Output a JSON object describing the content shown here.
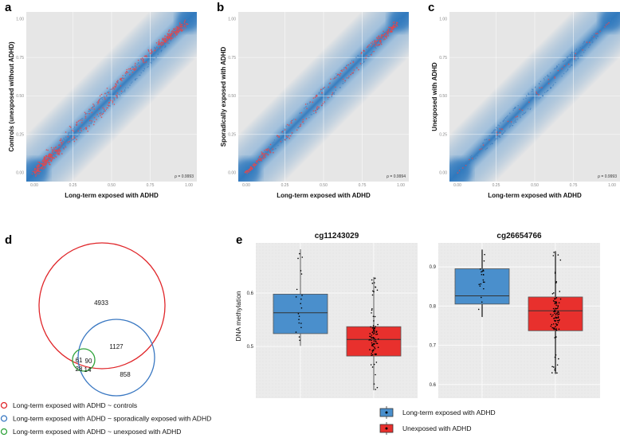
{
  "chart_data": [
    {
      "type": "scatter",
      "panel": "a",
      "xlabel": "Long-term exposed with ADHD",
      "ylabel": "Controls (unexposed without ADHD)",
      "xlim": [
        0,
        1
      ],
      "ylim": [
        0,
        1
      ],
      "ticks": [
        "0.00",
        "0.25",
        "0.50",
        "0.75",
        "1.00"
      ],
      "annotation": "ρ = 0.9993",
      "highlight_color": "#e8474a",
      "density_color": "#2f78bd"
    },
    {
      "type": "scatter",
      "panel": "b",
      "xlabel": "Long-term exposed with ADHD",
      "ylabel": "Sporadically exposed with ADHD",
      "xlim": [
        0,
        1
      ],
      "ylim": [
        0,
        1
      ],
      "ticks": [
        "0.00",
        "0.25",
        "0.50",
        "0.75",
        "1.00"
      ],
      "annotation": "ρ = 0.9994",
      "highlight_color": "#e8474a",
      "density_color": "#2f78bd"
    },
    {
      "type": "scatter",
      "panel": "c",
      "xlabel": "Long-term exposed with ADHD",
      "ylabel": "Unexposed with ADHD",
      "xlim": [
        0,
        1
      ],
      "ylim": [
        0,
        1
      ],
      "ticks": [
        "0.00",
        "0.25",
        "0.50",
        "0.75",
        "1.00"
      ],
      "annotation": "ρ = 0.9993",
      "highlight_color": "#e8474a",
      "density_color": "#2f78bd"
    },
    {
      "type": "venn",
      "panel": "d",
      "sets": [
        {
          "name": "Long-term exposed with ADHD ~ controls",
          "color": "#e0262a"
        },
        {
          "name": "Long-term exposed with ADHD ~ sporadically exposed with ADHD",
          "color": "#3a78c2"
        },
        {
          "name": "Long-term exposed with ADHD ~  unexposed with ADHD",
          "color": "#2ea33a"
        }
      ],
      "regions": {
        "red_only": "4933",
        "red_blue": "1127",
        "blue_only": "858",
        "green_red": "61",
        "green_red_blue": "90",
        "green_only": "28",
        "green_blue": "14"
      }
    },
    {
      "type": "box",
      "panel": "e",
      "ylabel": "DNA methylation",
      "legend": [
        {
          "name": "Long-term exposed with ADHD",
          "color": "#4a8fcc"
        },
        {
          "name": "Unexposed with ADHD",
          "color": "#e8302d"
        }
      ],
      "plots": [
        {
          "title": "cg11243029",
          "ylim": [
            0.403,
            0.694
          ],
          "yticks": [
            "0.5",
            "0.6"
          ],
          "yticks_values": [
            0.5,
            0.6
          ],
          "boxes": [
            {
              "group": "Long-term exposed with ADHD",
              "min": 0.501,
              "q1": 0.524,
              "median": 0.563,
              "q3": 0.598,
              "max": 0.682
            },
            {
              "group": "Unexposed with ADHD",
              "min": 0.418,
              "q1": 0.482,
              "median": 0.513,
              "q3": 0.537,
              "max": 0.63
            }
          ]
        },
        {
          "title": "cg26654766",
          "ylim": [
            0.565,
            0.961
          ],
          "yticks": [
            "0.6",
            "0.7",
            "0.8",
            "0.9"
          ],
          "yticks_values": [
            0.6,
            0.7,
            0.8,
            0.9
          ],
          "boxes": [
            {
              "group": "Long-term exposed with ADHD",
              "min": 0.772,
              "q1": 0.805,
              "median": 0.826,
              "q3": 0.895,
              "max": 0.944
            },
            {
              "group": "Unexposed with ADHD",
              "min": 0.627,
              "q1": 0.737,
              "median": 0.788,
              "q3": 0.823,
              "max": 0.94
            }
          ]
        }
      ]
    }
  ],
  "panel_labels": [
    "a",
    "b",
    "c",
    "d",
    "e"
  ]
}
